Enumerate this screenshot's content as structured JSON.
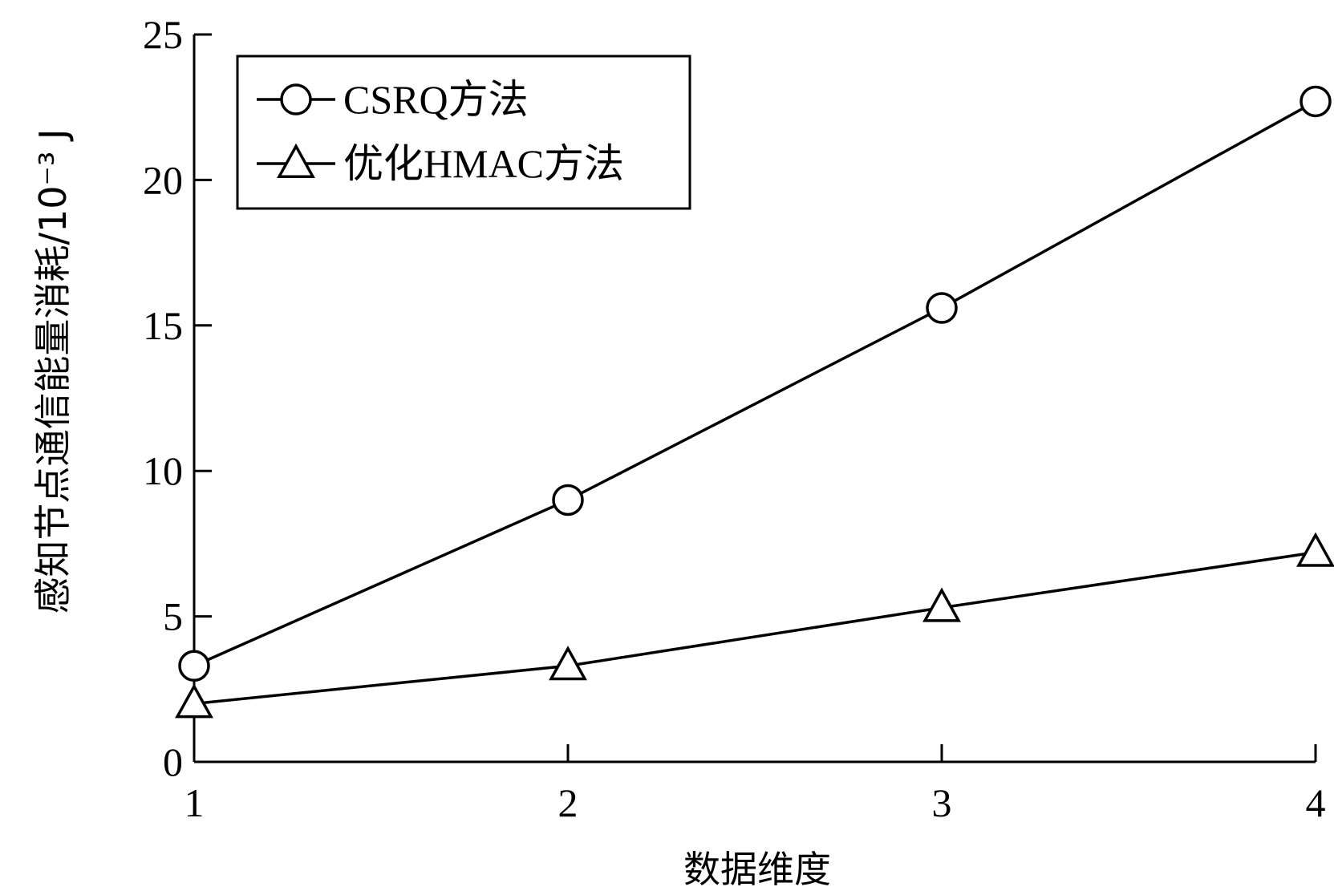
{
  "chart_data": {
    "type": "line",
    "x": [
      1,
      2,
      3,
      4
    ],
    "series": [
      {
        "name": "CSRQ方法",
        "marker": "circle",
        "values": [
          3.3,
          9.0,
          15.6,
          22.7
        ]
      },
      {
        "name": "优化HMAC方法",
        "marker": "triangle",
        "values": [
          2.0,
          3.3,
          5.3,
          7.2
        ]
      }
    ],
    "xlabel": "数据维度",
    "ylabel": "感知节点通信能量消耗/10⁻³ J",
    "xlim": [
      1,
      4
    ],
    "ylim": [
      0,
      25
    ],
    "xticks": [
      "1",
      "2",
      "3",
      "4"
    ],
    "yticks": [
      "0",
      "5",
      "10",
      "15",
      "20",
      "25"
    ],
    "grid": false,
    "legend_position": "top-left",
    "line_color": "#000000"
  }
}
